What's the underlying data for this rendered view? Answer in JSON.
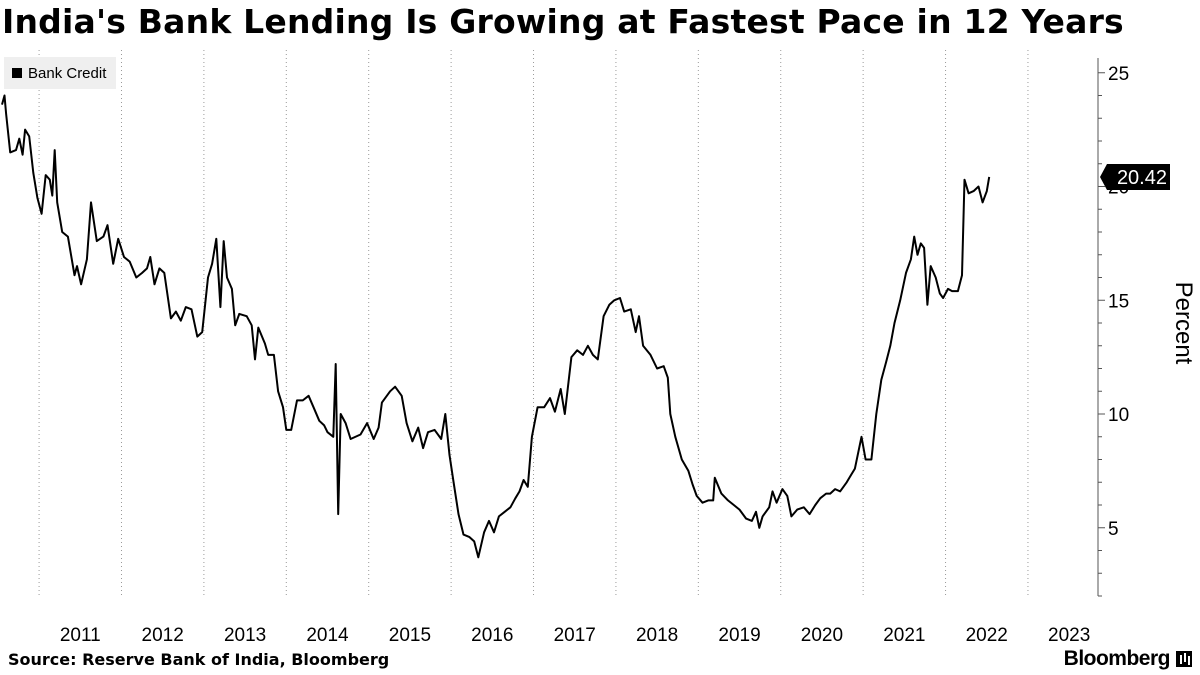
{
  "chart_data": {
    "type": "line",
    "title": "India's Bank Lending Is Growing at Fastest Pace in 12 Years",
    "ylabel": "Percent",
    "ylim": [
      2,
      26
    ],
    "yticks": [
      5,
      10,
      15,
      20,
      25
    ],
    "xlim": [
      2010.55,
      2023.85
    ],
    "xticks": [
      "2011",
      "2012",
      "2013",
      "2014",
      "2015",
      "2016",
      "2017",
      "2018",
      "2019",
      "2020",
      "2021",
      "2022",
      "2023"
    ],
    "grid": "vertical dotted",
    "legend_position": "top-left",
    "last_value_label": "20.42",
    "series": [
      {
        "name": "Bank Credit",
        "color": "#000000",
        "points": [
          [
            2010.55,
            23.6
          ],
          [
            2010.58,
            24.0
          ],
          [
            2010.6,
            23.2
          ],
          [
            2010.65,
            21.5
          ],
          [
            2010.72,
            21.6
          ],
          [
            2010.76,
            22.1
          ],
          [
            2010.8,
            21.4
          ],
          [
            2010.83,
            22.5
          ],
          [
            2010.88,
            22.2
          ],
          [
            2010.93,
            20.6
          ],
          [
            2010.98,
            19.5
          ],
          [
            2011.03,
            18.8
          ],
          [
            2011.08,
            20.5
          ],
          [
            2011.13,
            20.3
          ],
          [
            2011.16,
            19.6
          ],
          [
            2011.19,
            21.6
          ],
          [
            2011.22,
            19.3
          ],
          [
            2011.28,
            18.0
          ],
          [
            2011.35,
            17.8
          ],
          [
            2011.43,
            16.1
          ],
          [
            2011.46,
            16.5
          ],
          [
            2011.51,
            15.7
          ],
          [
            2011.58,
            16.8
          ],
          [
            2011.63,
            19.3
          ],
          [
            2011.7,
            17.6
          ],
          [
            2011.78,
            17.8
          ],
          [
            2011.83,
            18.3
          ],
          [
            2011.9,
            16.6
          ],
          [
            2011.96,
            17.7
          ],
          [
            2012.03,
            16.9
          ],
          [
            2012.1,
            16.7
          ],
          [
            2012.18,
            16.0
          ],
          [
            2012.25,
            16.2
          ],
          [
            2012.31,
            16.4
          ],
          [
            2012.35,
            16.9
          ],
          [
            2012.4,
            15.7
          ],
          [
            2012.46,
            16.4
          ],
          [
            2012.52,
            16.2
          ],
          [
            2012.6,
            14.2
          ],
          [
            2012.66,
            14.5
          ],
          [
            2012.72,
            14.1
          ],
          [
            2012.78,
            14.7
          ],
          [
            2012.85,
            14.6
          ],
          [
            2012.92,
            13.4
          ],
          [
            2012.98,
            13.6
          ],
          [
            2013.05,
            16.0
          ],
          [
            2013.1,
            16.6
          ],
          [
            2013.15,
            17.7
          ],
          [
            2013.2,
            14.7
          ],
          [
            2013.24,
            17.6
          ],
          [
            2013.28,
            16.0
          ],
          [
            2013.34,
            15.5
          ],
          [
            2013.38,
            13.9
          ],
          [
            2013.43,
            14.4
          ],
          [
            2013.52,
            14.3
          ],
          [
            2013.58,
            13.9
          ],
          [
            2013.62,
            12.4
          ],
          [
            2013.66,
            13.8
          ],
          [
            2013.74,
            13.1
          ],
          [
            2013.78,
            12.6
          ],
          [
            2013.85,
            12.6
          ],
          [
            2013.9,
            11.0
          ],
          [
            2013.96,
            10.3
          ],
          [
            2014.0,
            9.3
          ],
          [
            2014.06,
            9.3
          ],
          [
            2014.13,
            10.6
          ],
          [
            2014.2,
            10.6
          ],
          [
            2014.27,
            10.8
          ],
          [
            2014.33,
            10.3
          ],
          [
            2014.4,
            9.7
          ],
          [
            2014.46,
            9.5
          ],
          [
            2014.5,
            9.2
          ],
          [
            2014.57,
            9.0
          ],
          [
            2014.6,
            12.2
          ],
          [
            2014.63,
            5.6
          ],
          [
            2014.66,
            10.0
          ],
          [
            2014.72,
            9.6
          ],
          [
            2014.78,
            8.9
          ],
          [
            2014.9,
            9.1
          ],
          [
            2014.98,
            9.6
          ],
          [
            2015.06,
            8.9
          ],
          [
            2015.12,
            9.4
          ],
          [
            2015.16,
            10.5
          ],
          [
            2015.26,
            11.0
          ],
          [
            2015.32,
            11.2
          ],
          [
            2015.4,
            10.8
          ],
          [
            2015.46,
            9.6
          ],
          [
            2015.53,
            8.8
          ],
          [
            2015.6,
            9.4
          ],
          [
            2015.66,
            8.5
          ],
          [
            2015.72,
            9.2
          ],
          [
            2015.8,
            9.3
          ],
          [
            2015.88,
            8.9
          ],
          [
            2015.93,
            10.0
          ],
          [
            2015.98,
            8.2
          ],
          [
            2016.03,
            7.0
          ],
          [
            2016.09,
            5.6
          ],
          [
            2016.15,
            4.7
          ],
          [
            2016.22,
            4.6
          ],
          [
            2016.28,
            4.4
          ],
          [
            2016.33,
            3.7
          ],
          [
            2016.4,
            4.8
          ],
          [
            2016.46,
            5.3
          ],
          [
            2016.52,
            4.8
          ],
          [
            2016.58,
            5.5
          ],
          [
            2016.65,
            5.7
          ],
          [
            2016.72,
            5.9
          ],
          [
            2016.78,
            6.3
          ],
          [
            2016.83,
            6.6
          ],
          [
            2016.88,
            7.1
          ],
          [
            2016.93,
            6.8
          ],
          [
            2016.98,
            9.0
          ],
          [
            2017.05,
            10.3
          ],
          [
            2017.13,
            10.3
          ],
          [
            2017.2,
            10.7
          ],
          [
            2017.26,
            10.1
          ],
          [
            2017.33,
            11.1
          ],
          [
            2017.38,
            10.0
          ],
          [
            2017.46,
            12.5
          ],
          [
            2017.53,
            12.8
          ],
          [
            2017.6,
            12.6
          ],
          [
            2017.66,
            13.0
          ],
          [
            2017.72,
            12.6
          ],
          [
            2017.78,
            12.4
          ],
          [
            2017.85,
            14.3
          ],
          [
            2017.92,
            14.8
          ],
          [
            2017.98,
            15.0
          ],
          [
            2018.05,
            15.1
          ],
          [
            2018.1,
            14.5
          ],
          [
            2018.18,
            14.6
          ],
          [
            2018.24,
            13.6
          ],
          [
            2018.28,
            14.3
          ],
          [
            2018.33,
            13.0
          ],
          [
            2018.42,
            12.6
          ],
          [
            2018.5,
            12.0
          ],
          [
            2018.58,
            12.1
          ],
          [
            2018.63,
            11.6
          ],
          [
            2018.66,
            10.0
          ],
          [
            2018.72,
            9.0
          ],
          [
            2018.8,
            8.0
          ],
          [
            2018.88,
            7.5
          ],
          [
            2018.93,
            6.9
          ],
          [
            2018.98,
            6.4
          ],
          [
            2019.05,
            6.1
          ],
          [
            2019.12,
            6.2
          ],
          [
            2019.18,
            6.2
          ],
          [
            2019.2,
            7.2
          ],
          [
            2019.28,
            6.5
          ],
          [
            2019.36,
            6.2
          ],
          [
            2019.43,
            6.0
          ],
          [
            2019.5,
            5.8
          ],
          [
            2019.58,
            5.4
          ],
          [
            2019.65,
            5.3
          ],
          [
            2019.7,
            5.7
          ],
          [
            2019.74,
            5.0
          ],
          [
            2019.78,
            5.5
          ],
          [
            2019.86,
            5.9
          ],
          [
            2019.9,
            6.6
          ],
          [
            2019.95,
            6.1
          ],
          [
            2020.02,
            6.7
          ],
          [
            2020.08,
            6.4
          ],
          [
            2020.13,
            5.5
          ],
          [
            2020.2,
            5.8
          ],
          [
            2020.28,
            5.9
          ],
          [
            2020.35,
            5.6
          ],
          [
            2020.42,
            6.0
          ],
          [
            2020.48,
            6.3
          ],
          [
            2020.55,
            6.5
          ],
          [
            2020.6,
            6.5
          ],
          [
            2020.66,
            6.7
          ],
          [
            2020.72,
            6.6
          ],
          [
            2020.8,
            7.0
          ],
          [
            2020.85,
            7.3
          ],
          [
            2020.9,
            7.6
          ],
          [
            2020.98,
            9.0
          ],
          [
            2021.03,
            8.0
          ],
          [
            2021.1,
            8.0
          ],
          [
            2021.16,
            10.0
          ],
          [
            2021.22,
            11.5
          ],
          [
            2021.28,
            12.3
          ],
          [
            2021.33,
            13.0
          ],
          [
            2021.38,
            14.0
          ],
          [
            2021.45,
            15.0
          ],
          [
            2021.52,
            16.2
          ],
          [
            2021.58,
            16.8
          ],
          [
            2021.62,
            17.8
          ],
          [
            2021.66,
            17.0
          ],
          [
            2021.7,
            17.5
          ],
          [
            2021.74,
            17.3
          ],
          [
            2021.78,
            14.8
          ],
          [
            2021.82,
            16.5
          ],
          [
            2021.88,
            16.0
          ],
          [
            2021.93,
            15.3
          ],
          [
            2021.97,
            15.1
          ],
          [
            2022.03,
            15.5
          ],
          [
            2022.08,
            15.4
          ],
          [
            2022.15,
            15.4
          ],
          [
            2022.2,
            16.1
          ],
          [
            2022.23,
            20.3
          ],
          [
            2022.28,
            19.7
          ],
          [
            2022.34,
            19.8
          ],
          [
            2022.4,
            20.0
          ],
          [
            2022.45,
            19.3
          ],
          [
            2022.5,
            19.8
          ],
          [
            2022.53,
            20.42
          ]
        ]
      }
    ]
  },
  "footer": {
    "source": "Source: Reserve Bank of India, Bloomberg",
    "brand": "Bloomberg"
  }
}
